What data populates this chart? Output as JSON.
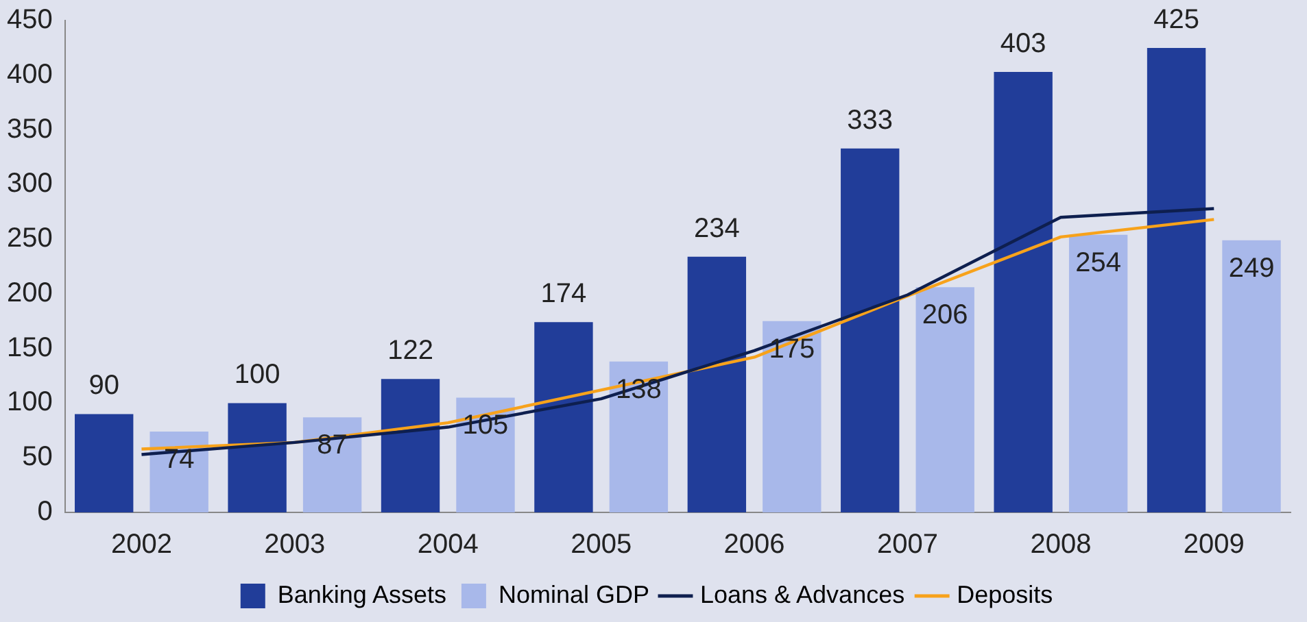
{
  "chart_data": {
    "type": "bar",
    "categories": [
      "2002",
      "2003",
      "2004",
      "2005",
      "2006",
      "2007",
      "2008",
      "2009"
    ],
    "series": [
      {
        "name": "Banking Assets",
        "color": "#213d99",
        "values": [
          90,
          100,
          122,
          174,
          234,
          333,
          403,
          425
        ],
        "value_labels": [
          "90",
          "100",
          "122",
          "174",
          "234",
          "333",
          "403",
          "425"
        ]
      },
      {
        "name": "Nominal GDP",
        "color": "#a8b8ea",
        "values": [
          74,
          87,
          105,
          138,
          175,
          206,
          254,
          249
        ],
        "value_labels": [
          "74",
          "87",
          "105",
          "138",
          "175",
          "206",
          "254",
          "249"
        ]
      },
      {
        "name": "Loans & Advances",
        "type": "line",
        "color": "#0e1f4f",
        "values": [
          53,
          64,
          78,
          104,
          148,
          199,
          270,
          278
        ]
      },
      {
        "name": "Deposits",
        "type": "line",
        "color": "#f7a21b",
        "values": [
          58,
          64,
          82,
          112,
          142,
          198,
          252,
          268
        ]
      }
    ],
    "ylim": [
      0,
      450
    ],
    "yticks": [
      0,
      50,
      100,
      150,
      200,
      250,
      300,
      350,
      400,
      450
    ],
    "grid": false,
    "legend": "bottom",
    "marker": "none"
  }
}
